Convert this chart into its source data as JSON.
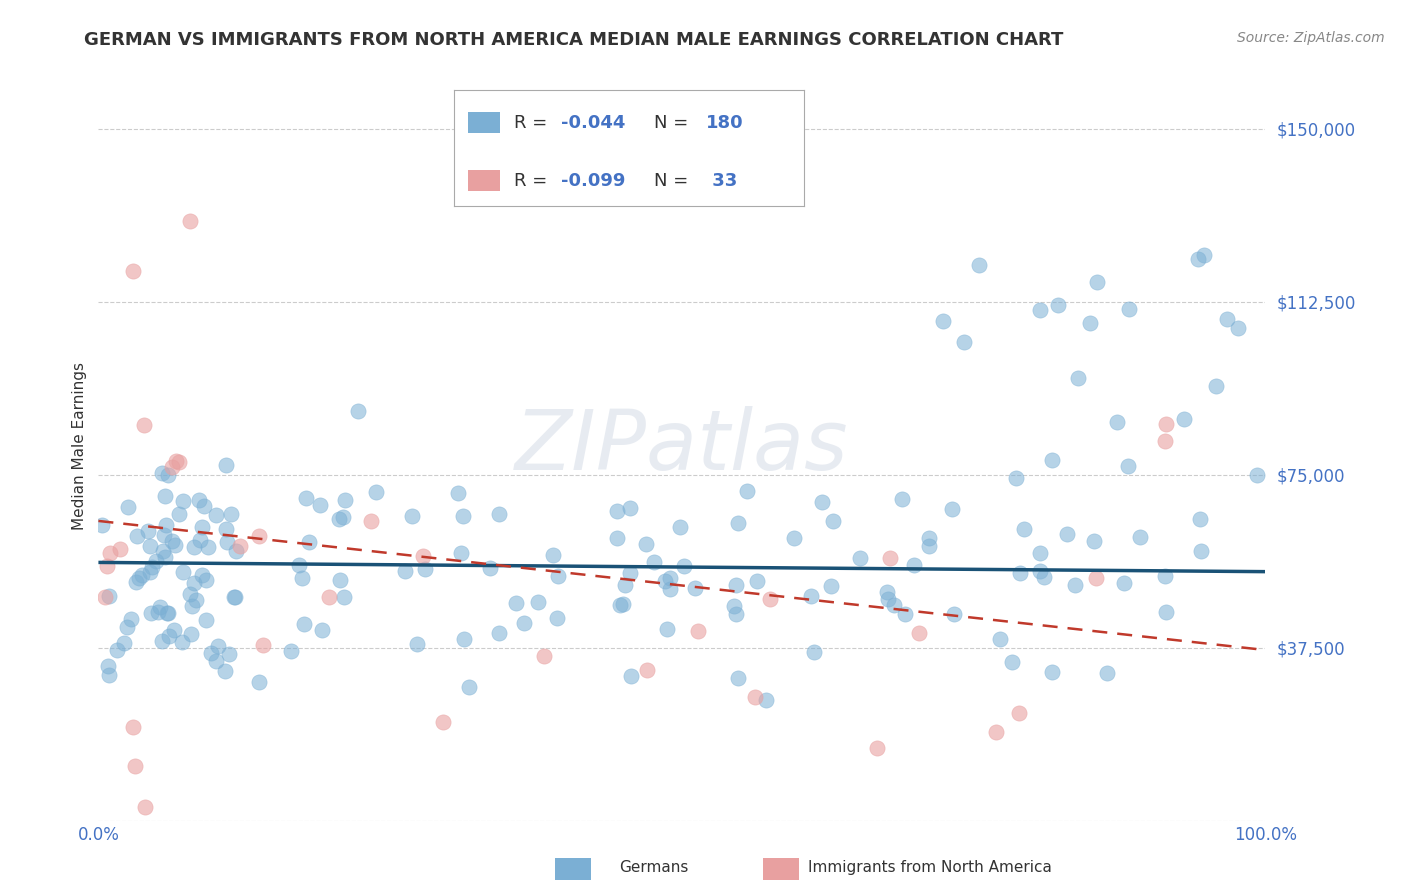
{
  "title": "GERMAN VS IMMIGRANTS FROM NORTH AMERICA MEDIAN MALE EARNINGS CORRELATION CHART",
  "source": "Source: ZipAtlas.com",
  "ylabel": "Median Male Earnings",
  "watermark": "ZIPatlas",
  "xlim": [
    0.0,
    1.0
  ],
  "ylim": [
    0,
    162500
  ],
  "yticks": [
    0,
    37500,
    75000,
    112500,
    150000
  ],
  "ytick_labels": [
    "",
    "$37,500",
    "$75,000",
    "$112,500",
    "$150,000"
  ],
  "series": [
    {
      "label": "Germans",
      "R": -0.044,
      "N": 180,
      "color": "#7bafd4",
      "trend_color": "#1a5276",
      "trend_solid": true
    },
    {
      "label": "Immigrants from North America",
      "R": -0.099,
      "N": 33,
      "color": "#e8a0a0",
      "trend_color": "#c0392b",
      "trend_solid": false
    }
  ],
  "background_color": "#ffffff",
  "grid_color": "#cccccc",
  "title_fontsize": 13,
  "axis_label_fontsize": 11,
  "tick_fontsize": 12,
  "legend_fontsize": 13,
  "source_fontsize": 10,
  "watermark_fontsize": 60
}
